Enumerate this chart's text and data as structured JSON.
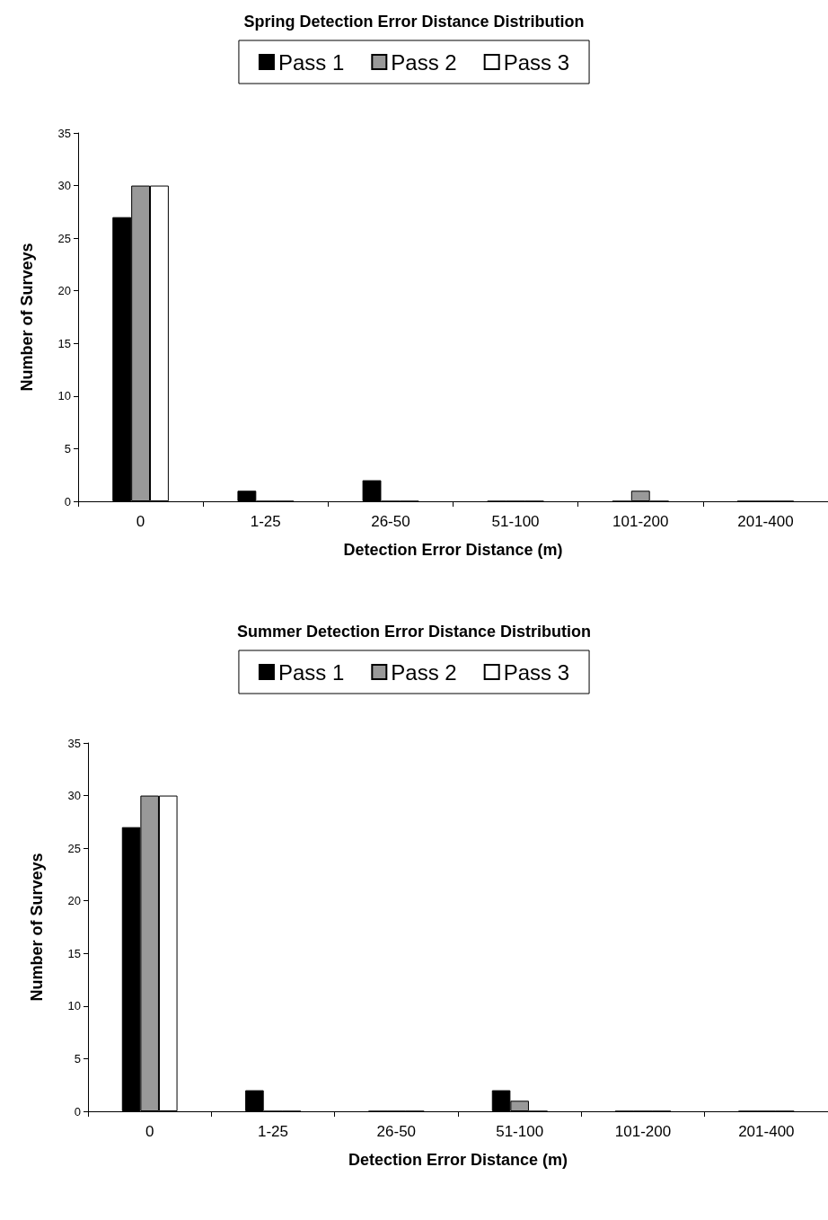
{
  "chart_data": [
    {
      "type": "bar",
      "title": "Spring Detection Error Distance Distribution",
      "xlabel": "Detection Error Distance (m)",
      "ylabel": "Number of Surveys",
      "categories": [
        "0",
        "1-25",
        "26-50",
        "51-100",
        "101-200",
        "201-400"
      ],
      "series": [
        {
          "name": "Pass 1",
          "color": "#000000",
          "values": [
            27,
            1,
            2,
            0,
            0,
            0
          ]
        },
        {
          "name": "Pass 2",
          "color": "#999999",
          "values": [
            30,
            0,
            0,
            0,
            1,
            0
          ]
        },
        {
          "name": "Pass 3",
          "color": "#ffffff",
          "values": [
            30,
            0,
            0,
            0,
            0,
            0
          ]
        }
      ],
      "ylim": [
        0,
        35
      ],
      "yticks": [
        0,
        5,
        10,
        15,
        20,
        25,
        30,
        35
      ],
      "grid": false,
      "legend": "top"
    },
    {
      "type": "bar",
      "title": "Summer Detection Error Distance Distribution",
      "xlabel": "Detection Error Distance (m)",
      "ylabel": "Number of Surveys",
      "categories": [
        "0",
        "1-25",
        "26-50",
        "51-100",
        "101-200",
        "201-400"
      ],
      "series": [
        {
          "name": "Pass 1",
          "color": "#000000",
          "values": [
            27,
            2,
            0,
            2,
            0,
            0
          ]
        },
        {
          "name": "Pass 2",
          "color": "#999999",
          "values": [
            30,
            0,
            0,
            1,
            0,
            0
          ]
        },
        {
          "name": "Pass 3",
          "color": "#ffffff",
          "values": [
            30,
            0,
            0,
            0,
            0,
            0
          ]
        }
      ],
      "ylim": [
        0,
        35
      ],
      "yticks": [
        0,
        5,
        10,
        15,
        20,
        25,
        30,
        35
      ],
      "grid": false,
      "legend": "top"
    }
  ]
}
